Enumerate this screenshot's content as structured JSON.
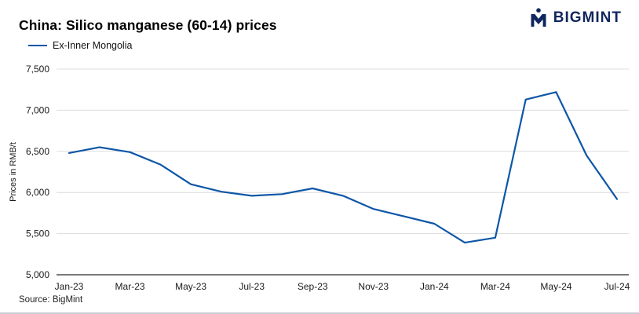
{
  "header": {
    "title": "China: Silico manganese (60-14) prices",
    "logo_text": "BIGMINT"
  },
  "legend": {
    "label": "Ex-Inner Mongolia",
    "color": "#0e56a7"
  },
  "footer": {
    "source": "Source: BigMint"
  },
  "chart_data": {
    "type": "line",
    "title": "China: Silico manganese (60-14) prices",
    "xlabel": "",
    "ylabel": "Prices in RMB/t",
    "ylim": [
      5000,
      7500
    ],
    "ytick_step": 500,
    "grid": true,
    "legend_position": "top-left",
    "x": [
      "Jan-23",
      "Feb-23",
      "Mar-23",
      "Apr-23",
      "May-23",
      "Jun-23",
      "Jul-23",
      "Aug-23",
      "Sep-23",
      "Oct-23",
      "Nov-23",
      "Dec-23",
      "Jan-24",
      "Feb-24",
      "Mar-24",
      "Apr-24",
      "May-24",
      "Jun-24",
      "Jul-24"
    ],
    "xtick_labels": [
      "Jan-23",
      "Mar-23",
      "May-23",
      "Jul-23",
      "Sep-23",
      "Nov-23",
      "Jan-24",
      "Mar-24",
      "May-24",
      "Jul-24"
    ],
    "series": [
      {
        "name": "Ex-Inner Mongolia",
        "color": "#0e56a7",
        "values": [
          6480,
          6550,
          6490,
          6340,
          6100,
          6010,
          5960,
          5980,
          6050,
          5960,
          5800,
          5710,
          5620,
          5390,
          5450,
          7130,
          7220,
          6450,
          5920
        ]
      }
    ]
  }
}
